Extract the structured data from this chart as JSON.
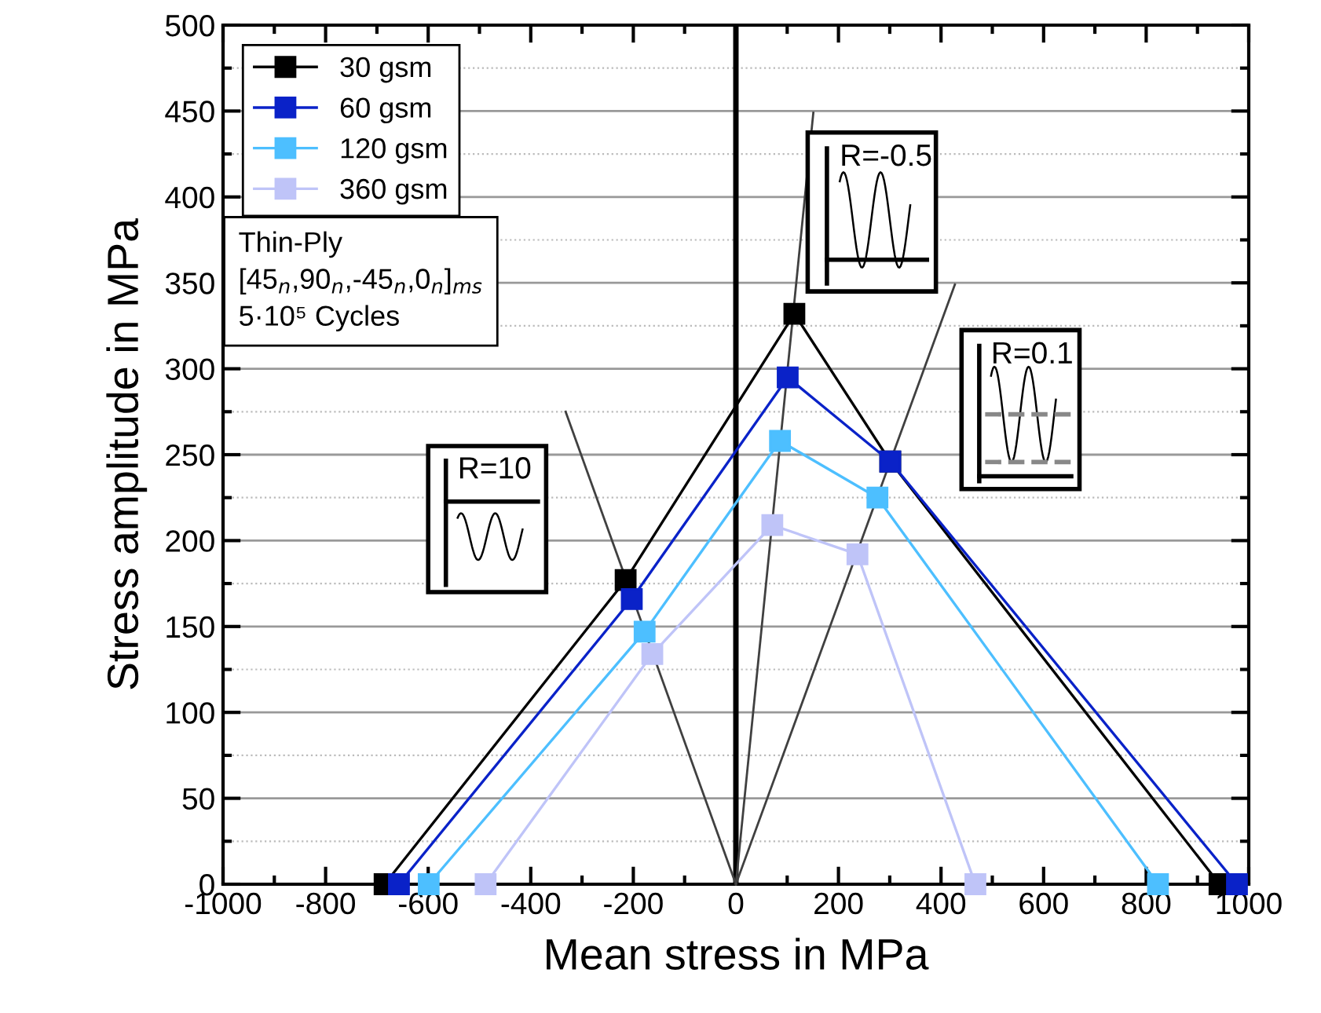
{
  "chart_data": {
    "type": "line",
    "xlabel": "Mean stress in MPa",
    "ylabel": "Stress amplitude in MPa",
    "xlim": [
      -1000,
      1000
    ],
    "xticks": [
      -1000,
      -800,
      -600,
      -400,
      -200,
      0,
      200,
      400,
      600,
      800,
      1000
    ],
    "ylim": [
      0,
      500
    ],
    "yticks": [
      0,
      50,
      100,
      150,
      200,
      250,
      300,
      350,
      400,
      450,
      500
    ],
    "grid": "y",
    "legend": "top left",
    "marker": "square",
    "line_style": "solid",
    "series": [
      {
        "name": "30 gsm",
        "color": "#000000",
        "x": [
          -685,
          -215,
          114,
          301,
          943
        ],
        "values": [
          0,
          177,
          332,
          246,
          0
        ]
      },
      {
        "name": "60 gsm",
        "color": "#0a22c8",
        "x": [
          -657,
          -203,
          101,
          301,
          977
        ],
        "values": [
          0,
          166,
          295,
          246,
          0
        ]
      },
      {
        "name": "120 gsm",
        "color": "#4dbfff",
        "x": [
          -599,
          -178,
          86,
          276,
          823
        ],
        "values": [
          0,
          147,
          258,
          225,
          0
        ]
      },
      {
        "name": "360 gsm",
        "color": "#bfc4f8",
        "x": [
          -488,
          -163,
          71,
          237,
          467
        ],
        "values": [
          0,
          134,
          209,
          192,
          0
        ]
      },
      {
        "type": "line",
        "marker": "none",
        "color": "#404040",
        "x": [
          0,
          -332
        ],
        "values": [
          0,
          275
        ]
      },
      {
        "type": "line",
        "marker": "none",
        "color": "#404040",
        "x": [
          0,
          151
        ],
        "values": [
          0,
          449
        ]
      },
      {
        "type": "line",
        "marker": "none",
        "color": "#404040",
        "x": [
          0,
          427
        ],
        "values": [
          0,
          349
        ]
      }
    ],
    "ref_lines": [
      {
        "axis": "x",
        "value": 0,
        "color": "#000000"
      }
    ],
    "annotations": [
      "Thin-Ply\n[45$_{n}$,90$_{n}$,-45$_{n}$,0$_{n}$]$_{ms}$\n5·10⁵ Cycles",
      "R=10",
      "R=-0.5",
      "R=0.1"
    ]
  }
}
